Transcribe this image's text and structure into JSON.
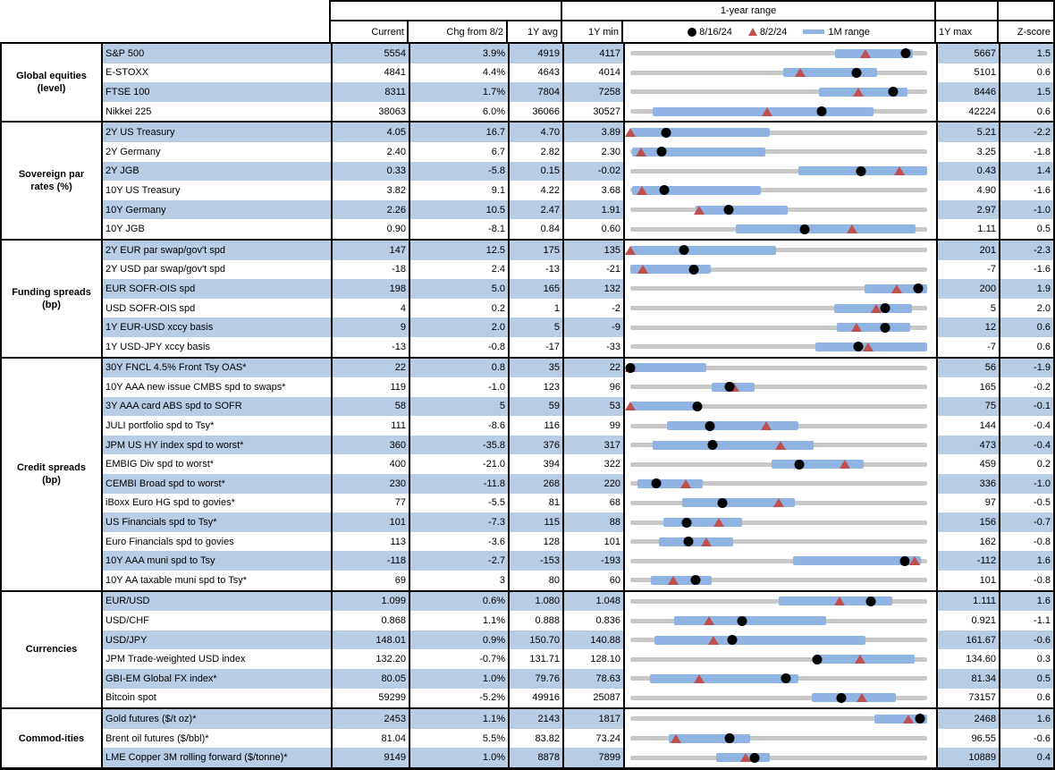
{
  "colors": {
    "stripe": "#b8cce4",
    "bar": "#8fb3e2",
    "track": "#c8c8c8",
    "triangle": "#c0504d",
    "dot": "#000000",
    "border": "#000000"
  },
  "header": {
    "range_title": "1-year range",
    "columns": {
      "current": "Current",
      "chg": "Chg from 8/2",
      "avg": "1Y avg",
      "min": "1Y min",
      "max": "1Y max",
      "z": "Z-score"
    },
    "legend": {
      "dot_label": "8/16/24",
      "triangle_label": "8/2/24",
      "bar_label": "1M range"
    }
  },
  "chart_data": {
    "type": "table",
    "title": "1-year range",
    "legend_entries": [
      "8/16/24 (black dot)",
      "8/2/24 (red triangle)",
      "1M range (blue bar)"
    ],
    "note": "dot_f = position of 8/16/24 value in 1Y min-max range (0-1); tri_f = position of 8/2/24 value; bar = [start,end] of 1M range band",
    "sections": [
      {
        "label": "Global equities (level)",
        "label_lines": [
          "Global equities",
          "(level)"
        ],
        "rows": [
          {
            "name": "S&P 500",
            "current": "5554",
            "chg": "3.9%",
            "avg": "4919",
            "min": "4117",
            "max": "5667",
            "z": "1.5",
            "dot_f": 0.927,
            "tri_f": 0.793,
            "bar": [
              0.69,
              0.951
            ]
          },
          {
            "name": "E-STOXX",
            "current": "4841",
            "chg": "4.4%",
            "avg": "4643",
            "min": "4014",
            "max": "5101",
            "z": "0.6",
            "dot_f": 0.761,
            "tri_f": 0.573,
            "bar": [
              0.516,
              0.832
            ]
          },
          {
            "name": "FTSE 100",
            "current": "8311",
            "chg": "1.7%",
            "avg": "7804",
            "min": "7258",
            "max": "8446",
            "z": "1.5",
            "dot_f": 0.886,
            "tri_f": 0.769,
            "bar": [
              0.636,
              0.935
            ]
          },
          {
            "name": "Nikkei 225",
            "current": "38063",
            "chg": "6.0%",
            "avg": "36066",
            "min": "30527",
            "max": "42224",
            "z": "0.6",
            "dot_f": 0.644,
            "tri_f": 0.46,
            "bar": [
              0.074,
              0.818
            ]
          }
        ]
      },
      {
        "label": "Sovereign par rates (%)",
        "label_lines": [
          "Sovereign par",
          "rates (%)"
        ],
        "rows": [
          {
            "name": "2Y US Treasury",
            "current": "4.05",
            "chg": "16.7",
            "avg": "4.70",
            "min": "3.89",
            "max": "5.21",
            "z": "-2.2",
            "dot_f": 0.121,
            "tri_f": 0.0,
            "bar": [
              0.0,
              0.47
            ]
          },
          {
            "name": "2Y Germany",
            "current": "2.40",
            "chg": "6.7",
            "avg": "2.82",
            "min": "2.30",
            "max": "3.25",
            "z": "-1.8",
            "dot_f": 0.105,
            "tri_f": 0.035,
            "bar": [
              0.005,
              0.455
            ]
          },
          {
            "name": "2Y JGB",
            "current": "0.33",
            "chg": "-5.8",
            "avg": "0.15",
            "min": "-0.02",
            "max": "0.43",
            "z": "1.4",
            "dot_f": 0.778,
            "tri_f": 0.907,
            "bar": [
              0.566,
              1.0
            ]
          },
          {
            "name": "10Y US Treasury",
            "current": "3.82",
            "chg": "9.1",
            "avg": "4.22",
            "min": "3.68",
            "max": "4.90",
            "z": "-1.6",
            "dot_f": 0.115,
            "tri_f": 0.04,
            "bar": [
              0.005,
              0.44
            ]
          },
          {
            "name": "10Y Germany",
            "current": "2.26",
            "chg": "10.5",
            "avg": "2.47",
            "min": "1.91",
            "max": "2.97",
            "z": "-1.0",
            "dot_f": 0.33,
            "tri_f": 0.231,
            "bar": [
              0.221,
              0.53
            ]
          },
          {
            "name": "10Y JGB",
            "current": "0.90",
            "chg": "-8.1",
            "avg": "0.84",
            "min": "0.60",
            "max": "1.11",
            "z": "0.5",
            "dot_f": 0.588,
            "tri_f": 0.747,
            "bar": [
              0.355,
              0.96
            ]
          }
        ]
      },
      {
        "label": "Funding spreads (bp)",
        "label_lines": [
          "Funding spreads",
          "(bp)"
        ],
        "rows": [
          {
            "name": "2Y EUR par swap/gov't spd",
            "current": "147",
            "chg": "12.5",
            "avg": "175",
            "min": "135",
            "max": "201",
            "z": "-2.3",
            "dot_f": 0.182,
            "tri_f": 0.0,
            "bar": [
              0.0,
              0.49
            ]
          },
          {
            "name": "2Y USD par swap/gov't spd",
            "current": "-18",
            "chg": "2.4",
            "avg": "-13",
            "min": "-21",
            "max": "-7",
            "z": "-1.6",
            "dot_f": 0.214,
            "tri_f": 0.043,
            "bar": [
              0.0,
              0.27
            ]
          },
          {
            "name": "EUR SOFR-OIS spd",
            "current": "198",
            "chg": "5.0",
            "avg": "165",
            "min": "132",
            "max": "200",
            "z": "1.9",
            "dot_f": 0.971,
            "tri_f": 0.897,
            "bar": [
              0.788,
              1.0
            ]
          },
          {
            "name": "USD SOFR-OIS spd",
            "current": "4",
            "chg": "0.2",
            "avg": "1",
            "min": "-2",
            "max": "5",
            "z": "2.0",
            "dot_f": 0.857,
            "tri_f": 0.829,
            "bar": [
              0.688,
              0.95
            ]
          },
          {
            "name": "1Y EUR-USD xccy basis",
            "current": "9",
            "chg": "2.0",
            "avg": "5",
            "min": "-9",
            "max": "12",
            "z": "0.6",
            "dot_f": 0.857,
            "tri_f": 0.762,
            "bar": [
              0.696,
              0.944
            ]
          },
          {
            "name": "1Y USD-JPY xccy basis",
            "current": "-13",
            "chg": "-0.8",
            "avg": "-17",
            "min": "-33",
            "max": "-7",
            "z": "0.6",
            "dot_f": 0.769,
            "tri_f": 0.8,
            "bar": [
              0.622,
              1.0
            ]
          }
        ]
      },
      {
        "label": "Credit spreads (bp)",
        "label_lines": [
          "Credit spreads",
          "(bp)"
        ],
        "rows": [
          {
            "name": "30Y FNCL 4.5% Front Tsy OAS*",
            "current": "22",
            "chg": "0.8",
            "avg": "35",
            "min": "22",
            "max": "56",
            "z": "-1.9",
            "dot_f": 0.0,
            "tri_f": 0.0,
            "bar": [
              0.0,
              0.257
            ]
          },
          {
            "name": "10Y AAA new issue CMBS spd to swaps*",
            "current": "119",
            "chg": "-1.0",
            "avg": "123",
            "min": "96",
            "max": "165",
            "z": "-0.2",
            "dot_f": 0.333,
            "tri_f": 0.348,
            "bar": [
              0.274,
              0.418
            ]
          },
          {
            "name": "3Y AAA card ABS spd to SOFR",
            "current": "58",
            "chg": "5",
            "avg": "59",
            "min": "53",
            "max": "75",
            "z": "-0.1",
            "dot_f": 0.227,
            "tri_f": 0.0,
            "bar": [
              0.0,
              0.224
            ]
          },
          {
            "name": "JULI portfolio spd to Tsy*",
            "current": "111",
            "chg": "-8.6",
            "avg": "116",
            "min": "99",
            "max": "144",
            "z": "-0.4",
            "dot_f": 0.267,
            "tri_f": 0.458,
            "bar": [
              0.124,
              0.566
            ]
          },
          {
            "name": "JPM US HY index spd to worst*",
            "current": "360",
            "chg": "-35.8",
            "avg": "376",
            "min": "317",
            "max": "473",
            "z": "-0.4",
            "dot_f": 0.276,
            "tri_f": 0.505,
            "bar": [
              0.075,
              0.619
            ]
          },
          {
            "name": "EMBIG Div spd to worst*",
            "current": "400",
            "chg": "-21.0",
            "avg": "394",
            "min": "322",
            "max": "459",
            "z": "0.2",
            "dot_f": 0.569,
            "tri_f": 0.723,
            "bar": [
              0.475,
              0.787
            ]
          },
          {
            "name": "CEMBI Broad spd to worst*",
            "current": "230",
            "chg": "-11.8",
            "avg": "268",
            "min": "220",
            "max": "336",
            "z": "-1.0",
            "dot_f": 0.086,
            "tri_f": 0.188,
            "bar": [
              0.023,
              0.244
            ]
          },
          {
            "name": "iBoxx Euro HG spd to govies*",
            "current": "77",
            "chg": "-5.5",
            "avg": "81",
            "min": "68",
            "max": "97",
            "z": "-0.5",
            "dot_f": 0.31,
            "tri_f": 0.5,
            "bar": [
              0.176,
              0.553
            ]
          },
          {
            "name": "US Financials spd to Tsy*",
            "current": "101",
            "chg": "-7.3",
            "avg": "115",
            "min": "88",
            "max": "156",
            "z": "-0.7",
            "dot_f": 0.191,
            "tri_f": 0.299,
            "bar": [
              0.11,
              0.377
            ]
          },
          {
            "name": "Euro Financials spd to govies",
            "current": "113",
            "chg": "-3.6",
            "avg": "128",
            "min": "101",
            "max": "162",
            "z": "-0.8",
            "dot_f": 0.197,
            "tri_f": 0.256,
            "bar": [
              0.096,
              0.347
            ]
          },
          {
            "name": "10Y AAA muni spd to Tsy",
            "current": "-118",
            "chg": "-2.7",
            "avg": "-153",
            "min": "-193",
            "max": "-112",
            "z": "1.6",
            "dot_f": 0.926,
            "tri_f": 0.959,
            "bar": [
              0.548,
              0.978
            ]
          },
          {
            "name": "10Y AA taxable muni spd to Tsy*",
            "current": "69",
            "chg": "3",
            "avg": "80",
            "min": "60",
            "max": "101",
            "z": "-0.8",
            "dot_f": 0.22,
            "tri_f": 0.146,
            "bar": [
              0.07,
              0.274
            ]
          }
        ]
      },
      {
        "label": "Currencies",
        "label_lines": [
          "Currencies"
        ],
        "rows": [
          {
            "name": "EUR/USD",
            "current": "1.099",
            "chg": "0.6%",
            "avg": "1.080",
            "min": "1.048",
            "max": "1.111",
            "z": "1.6",
            "dot_f": 0.81,
            "tri_f": 0.705,
            "bar": [
              0.501,
              0.884
            ]
          },
          {
            "name": "USD/CHF",
            "current": "0.868",
            "chg": "1.1%",
            "avg": "0.888",
            "min": "0.836",
            "max": "0.921",
            "z": "-1.1",
            "dot_f": 0.376,
            "tri_f": 0.265,
            "bar": [
              0.147,
              0.66
            ]
          },
          {
            "name": "USD/JPY",
            "current": "148.01",
            "chg": "0.9%",
            "avg": "150.70",
            "min": "140.88",
            "max": "161.67",
            "z": "-0.6",
            "dot_f": 0.343,
            "tri_f": 0.279,
            "bar": [
              0.08,
              0.791
            ]
          },
          {
            "name": "JPM Trade-weighted USD index",
            "current": "132.20",
            "chg": "-0.7%",
            "avg": "131.71",
            "min": "128.10",
            "max": "134.60",
            "z": "0.3",
            "dot_f": 0.631,
            "tri_f": 0.774,
            "bar": [
              0.622,
              0.957
            ]
          },
          {
            "name": "GBI-EM Global FX index*",
            "current": "80.05",
            "chg": "1.0%",
            "avg": "79.76",
            "min": "78.63",
            "max": "81.34",
            "z": "0.5",
            "dot_f": 0.524,
            "tri_f": 0.232,
            "bar": [
              0.066,
              0.567
            ]
          },
          {
            "name": "Bitcoin spot",
            "current": "59299",
            "chg": "-5.2%",
            "avg": "49916",
            "min": "25087",
            "max": "73157",
            "z": "0.6",
            "dot_f": 0.712,
            "tri_f": 0.779,
            "bar": [
              0.61,
              0.894
            ]
          }
        ]
      },
      {
        "label": "Commod-ities",
        "label_lines": [
          "Commod-ities"
        ],
        "rows": [
          {
            "name": "Gold futures ($/t oz)*",
            "current": "2453",
            "chg": "1.1%",
            "avg": "2143",
            "min": "1817",
            "max": "2468",
            "z": "1.6",
            "dot_f": 0.977,
            "tri_f": 0.936,
            "bar": [
              0.823,
              1.0
            ]
          },
          {
            "name": "Brent oil futures ($/bbl)*",
            "current": "81.04",
            "chg": "5.5%",
            "avg": "83.82",
            "min": "73.24",
            "max": "96.55",
            "z": "-0.6",
            "dot_f": 0.335,
            "tri_f": 0.154,
            "bar": [
              0.131,
              0.403
            ]
          },
          {
            "name": "LME Copper 3M rolling forward ($/tonne)*",
            "current": "9149",
            "chg": "1.0%",
            "avg": "8878",
            "min": "7899",
            "max": "10889",
            "z": "0.4",
            "dot_f": 0.418,
            "tri_f": 0.388,
            "bar": [
              0.29,
              0.471
            ]
          }
        ]
      }
    ]
  }
}
